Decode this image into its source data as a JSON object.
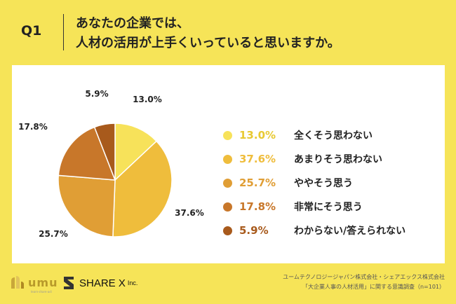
{
  "header": {
    "q_label": "Q1",
    "title_line1": "あなたの企業では、",
    "title_line2": "人材の活用が上手くいっていると思いますか。"
  },
  "chart_data": {
    "type": "pie",
    "categories": [
      "全くそう思わない",
      "あまりそう思わない",
      "ややそう思う",
      "非常にそう思う",
      "わからない/答えられない"
    ],
    "values": [
      13.0,
      37.6,
      25.7,
      17.8,
      5.9
    ],
    "value_labels": [
      "13.0%",
      "37.6%",
      "25.7%",
      "17.8%",
      "5.9%"
    ],
    "colors": [
      "#f7e25a",
      "#efbd3c",
      "#e09e35",
      "#c8772a",
      "#a85a1c"
    ],
    "legend_placement": "right"
  },
  "footer": {
    "source_line1": "ユームテクノロジージャパン株式会社・シェアエックス株式会社",
    "source_line2": "「大企業人事の人材活用」に関する意識調査（n=101）"
  },
  "logos": {
    "umu_text": "umu",
    "umu_subtitle": "learn·share·act",
    "sharex_text": "SHARE X",
    "sharex_suffix": "Inc."
  }
}
